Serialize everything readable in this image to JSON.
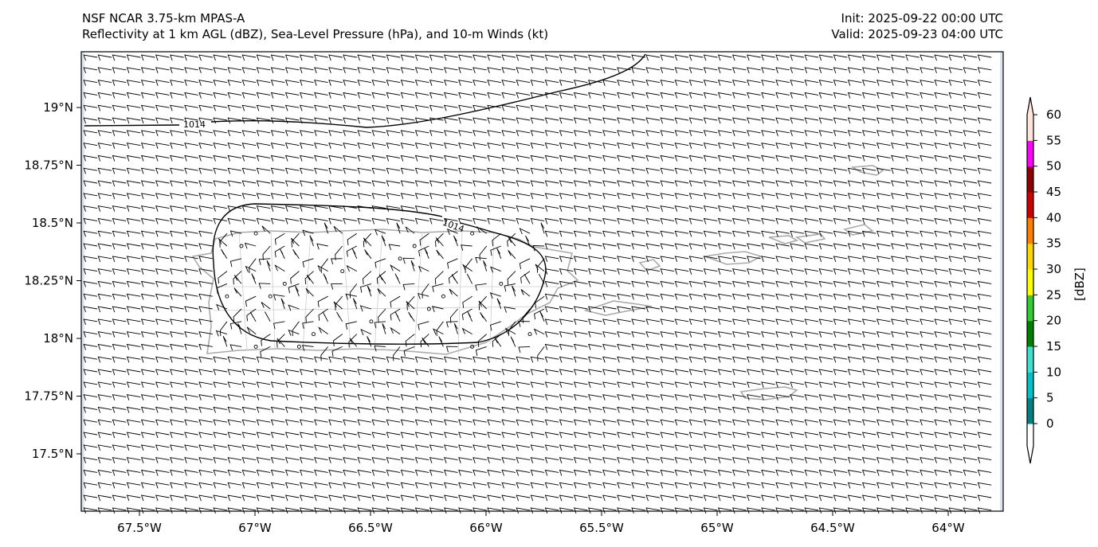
{
  "header": {
    "model": "NSF NCAR 3.75-km MPAS-A",
    "fields": "Reflectivity at 1 km AGL (dBZ), Sea-Level Pressure (hPa), and 10-m Winds (kt)",
    "init": "Init: 2025-09-22 00:00 UTC",
    "valid": "Valid: 2025-09-23 04:00 UTC"
  },
  "map": {
    "lon_ticks": [
      "67.5°W",
      "67°W",
      "66.5°W",
      "66°W",
      "65.5°W",
      "65°W",
      "64.5°W",
      "64°W"
    ],
    "lat_ticks": [
      "19°N",
      "18.75°N",
      "18.5°N",
      "18.25°N",
      "18°N",
      "17.75°N",
      "17.5°N"
    ],
    "isobar_labels": [
      "1014",
      "1014"
    ],
    "wind_speed_kt": 10
  },
  "colorbar": {
    "label": "[dBZ]",
    "ticks": [
      "0",
      "5",
      "10",
      "15",
      "20",
      "25",
      "30",
      "35",
      "40",
      "45",
      "50",
      "55",
      "60"
    ],
    "colors": [
      "#008080",
      "#00c0c8",
      "#40e0d0",
      "#008000",
      "#32cd32",
      "#ffff00",
      "#ffd700",
      "#ff8000",
      "#cc0000",
      "#8b0000",
      "#ff00ff",
      "#ffe4dc"
    ]
  }
}
